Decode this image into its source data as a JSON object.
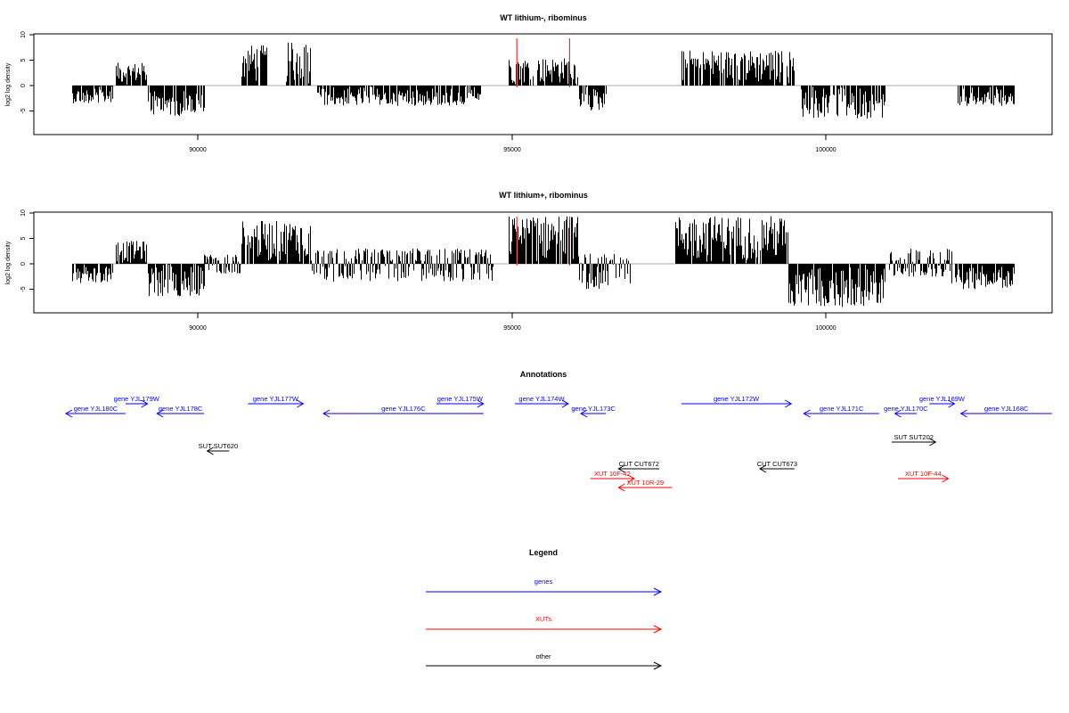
{
  "chart_data": [
    {
      "type": "bar",
      "title": "WT lithium-, ribominus",
      "ylabel": "log2 log density",
      "xlabel": "",
      "xlim": [
        87500,
        103600
      ],
      "ylim": [
        -10,
        10
      ],
      "x_ticks": [
        "90000",
        "95000",
        "100000"
      ],
      "y_ticks": [
        "10",
        "5",
        "0",
        "-5"
      ],
      "grid": false,
      "red_markers_x": [
        95080,
        95920
      ],
      "coverage_segments": [
        {
          "start": 88000,
          "end": 88650,
          "min": -3.5,
          "max": 1.5
        },
        {
          "start": 88700,
          "end": 89200,
          "min": -1,
          "max": 4.5
        },
        {
          "start": 89200,
          "end": 90100,
          "min": -6,
          "max": 0
        },
        {
          "start": 90700,
          "end": 91100,
          "min": 0,
          "max": 8
        },
        {
          "start": 91400,
          "end": 91800,
          "min": 0,
          "max": 8.5
        },
        {
          "start": 91900,
          "end": 94500,
          "min": -4,
          "max": 0.5
        },
        {
          "start": 94950,
          "end": 96050,
          "min": 0,
          "max": 5.5
        },
        {
          "start": 96050,
          "end": 96500,
          "min": -5,
          "max": 0
        },
        {
          "start": 97700,
          "end": 99500,
          "min": 0,
          "max": 7
        },
        {
          "start": 99600,
          "end": 100950,
          "min": -6.5,
          "max": 0
        },
        {
          "start": 102100,
          "end": 103000,
          "min": -4,
          "max": 0
        }
      ]
    },
    {
      "type": "bar",
      "title": "WT lithium+, ribominus",
      "ylabel": "log2 log density",
      "xlabel": "",
      "xlim": [
        87500,
        103600
      ],
      "ylim": [
        -10,
        10
      ],
      "x_ticks": [
        "90000",
        "95000",
        "100000"
      ],
      "y_ticks": [
        "10",
        "5",
        "0",
        "-5"
      ],
      "grid": false,
      "red_markers_x": [
        95080,
        95920
      ],
      "coverage_segments": [
        {
          "start": 88000,
          "end": 88650,
          "min": -4,
          "max": 1.5
        },
        {
          "start": 88700,
          "end": 89200,
          "min": -1,
          "max": 4.5
        },
        {
          "start": 89200,
          "end": 90100,
          "min": -6.5,
          "max": 0
        },
        {
          "start": 90100,
          "end": 90700,
          "min": -2,
          "max": 2
        },
        {
          "start": 90700,
          "end": 91800,
          "min": 0,
          "max": 8.5
        },
        {
          "start": 91800,
          "end": 94700,
          "min": -3.5,
          "max": 3
        },
        {
          "start": 94950,
          "end": 96050,
          "min": 0,
          "max": 9.5
        },
        {
          "start": 96050,
          "end": 96900,
          "min": -5,
          "max": 2
        },
        {
          "start": 97600,
          "end": 99400,
          "min": 0,
          "max": 9.5
        },
        {
          "start": 99400,
          "end": 100950,
          "min": -8.5,
          "max": 0
        },
        {
          "start": 101000,
          "end": 102000,
          "min": -2.5,
          "max": 3
        },
        {
          "start": 102000,
          "end": 103000,
          "min": -5,
          "max": 0
        }
      ]
    }
  ],
  "annotations": {
    "title": "Annotations",
    "features": [
      {
        "label": "gene YJL180C",
        "x1": 87900,
        "x2": 88850,
        "dir": "left",
        "row": 1,
        "color": "#0000ff"
      },
      {
        "label": "gene YJL179W",
        "x1": 88850,
        "x2": 89200,
        "dir": "right",
        "row": 0,
        "color": "#0000ff"
      },
      {
        "label": "gene YJL178C",
        "x1": 89350,
        "x2": 90100,
        "dir": "left",
        "row": 1,
        "color": "#0000ff"
      },
      {
        "label": "gene YJL177W",
        "x1": 90800,
        "x2": 91680,
        "dir": "right",
        "row": 0,
        "color": "#0000ff"
      },
      {
        "label": "gene YJL176C",
        "x1": 92000,
        "x2": 94550,
        "dir": "left",
        "row": 1,
        "color": "#0000ff"
      },
      {
        "label": "gene YJL175W",
        "x1": 93800,
        "x2": 94550,
        "dir": "right",
        "row": 0,
        "color": "#0000ff"
      },
      {
        "label": "gene YJL174W",
        "x1": 95050,
        "x2": 95900,
        "dir": "right",
        "row": 0,
        "color": "#0000ff"
      },
      {
        "label": "gene YJL173C",
        "x1": 96100,
        "x2": 96500,
        "dir": "left",
        "row": 1,
        "color": "#0000ff"
      },
      {
        "label": "gene YJL172W",
        "x1": 97700,
        "x2": 99450,
        "dir": "right",
        "row": 0,
        "color": "#0000ff"
      },
      {
        "label": "gene YJL171C",
        "x1": 99650,
        "x2": 100850,
        "dir": "left",
        "row": 1,
        "color": "#0000ff"
      },
      {
        "label": "gene YJL170C",
        "x1": 101100,
        "x2": 101450,
        "dir": "left",
        "row": 1,
        "color": "#0000ff"
      },
      {
        "label": "gene YJL169W",
        "x1": 101650,
        "x2": 102050,
        "dir": "right",
        "row": 0,
        "color": "#0000ff"
      },
      {
        "label": "gene YJL168C",
        "x1": 102150,
        "x2": 103600,
        "dir": "left",
        "row": 1,
        "color": "#0000ff"
      },
      {
        "label": "SUT SUT620",
        "x1": 90150,
        "x2": 90500,
        "dir": "left",
        "row": 3,
        "color": "#000000"
      },
      {
        "label": "SUT SUT202",
        "x1": 101050,
        "x2": 101750,
        "dir": "right",
        "row": 2,
        "color": "#000000"
      },
      {
        "label": "CUT CUT672",
        "x1": 96700,
        "x2": 97350,
        "dir": "left",
        "row": 4,
        "color": "#000000"
      },
      {
        "label": "CUT CUT673",
        "x1": 98950,
        "x2": 99500,
        "dir": "left",
        "row": 4,
        "color": "#000000"
      },
      {
        "label": "XUT 10F-42",
        "x1": 96250,
        "x2": 96950,
        "dir": "right",
        "row": 5,
        "color": "#ff0000"
      },
      {
        "label": "XUT 10R-29",
        "x1": 96700,
        "x2": 97550,
        "dir": "left",
        "row": 6,
        "color": "#ff0000"
      },
      {
        "label": "XUT 10F-44",
        "x1": 101150,
        "x2": 101950,
        "dir": "right",
        "row": 5,
        "color": "#ff0000"
      }
    ]
  },
  "legend": {
    "title": "Legend",
    "items": [
      {
        "label": "genes",
        "color": "#0000ff"
      },
      {
        "label": "XUTs",
        "color": "#ff0000"
      },
      {
        "label": "other",
        "color": "#000000"
      }
    ]
  }
}
